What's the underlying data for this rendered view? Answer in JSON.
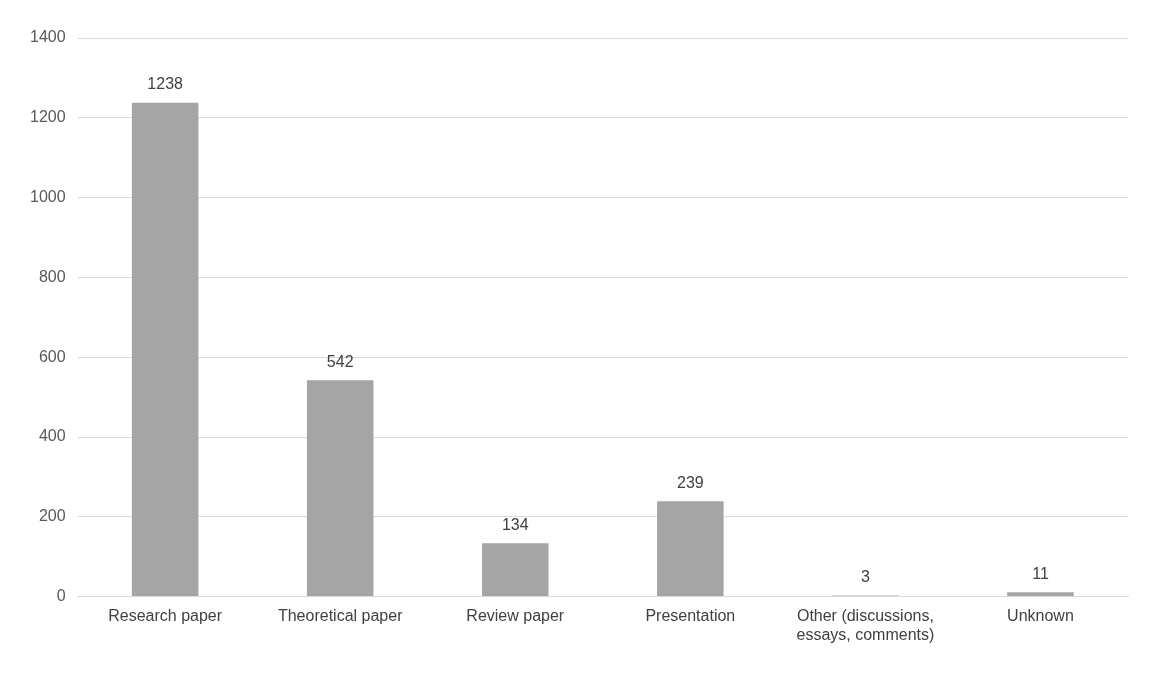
{
  "chart_data": {
    "type": "bar",
    "categories": [
      "Research paper",
      "Theoretical paper",
      "Review paper",
      "Presentation",
      "Other (discussions, essays, comments)",
      "Unknown"
    ],
    "values": [
      1238,
      542,
      134,
      239,
      3,
      11
    ],
    "color": "#a5a5a5",
    "ylim": [
      0,
      1400
    ],
    "yticks": [
      0,
      200,
      400,
      600,
      800,
      1000,
      1200,
      1400
    ],
    "grid": "y",
    "data_labels": true,
    "legend": false
  }
}
